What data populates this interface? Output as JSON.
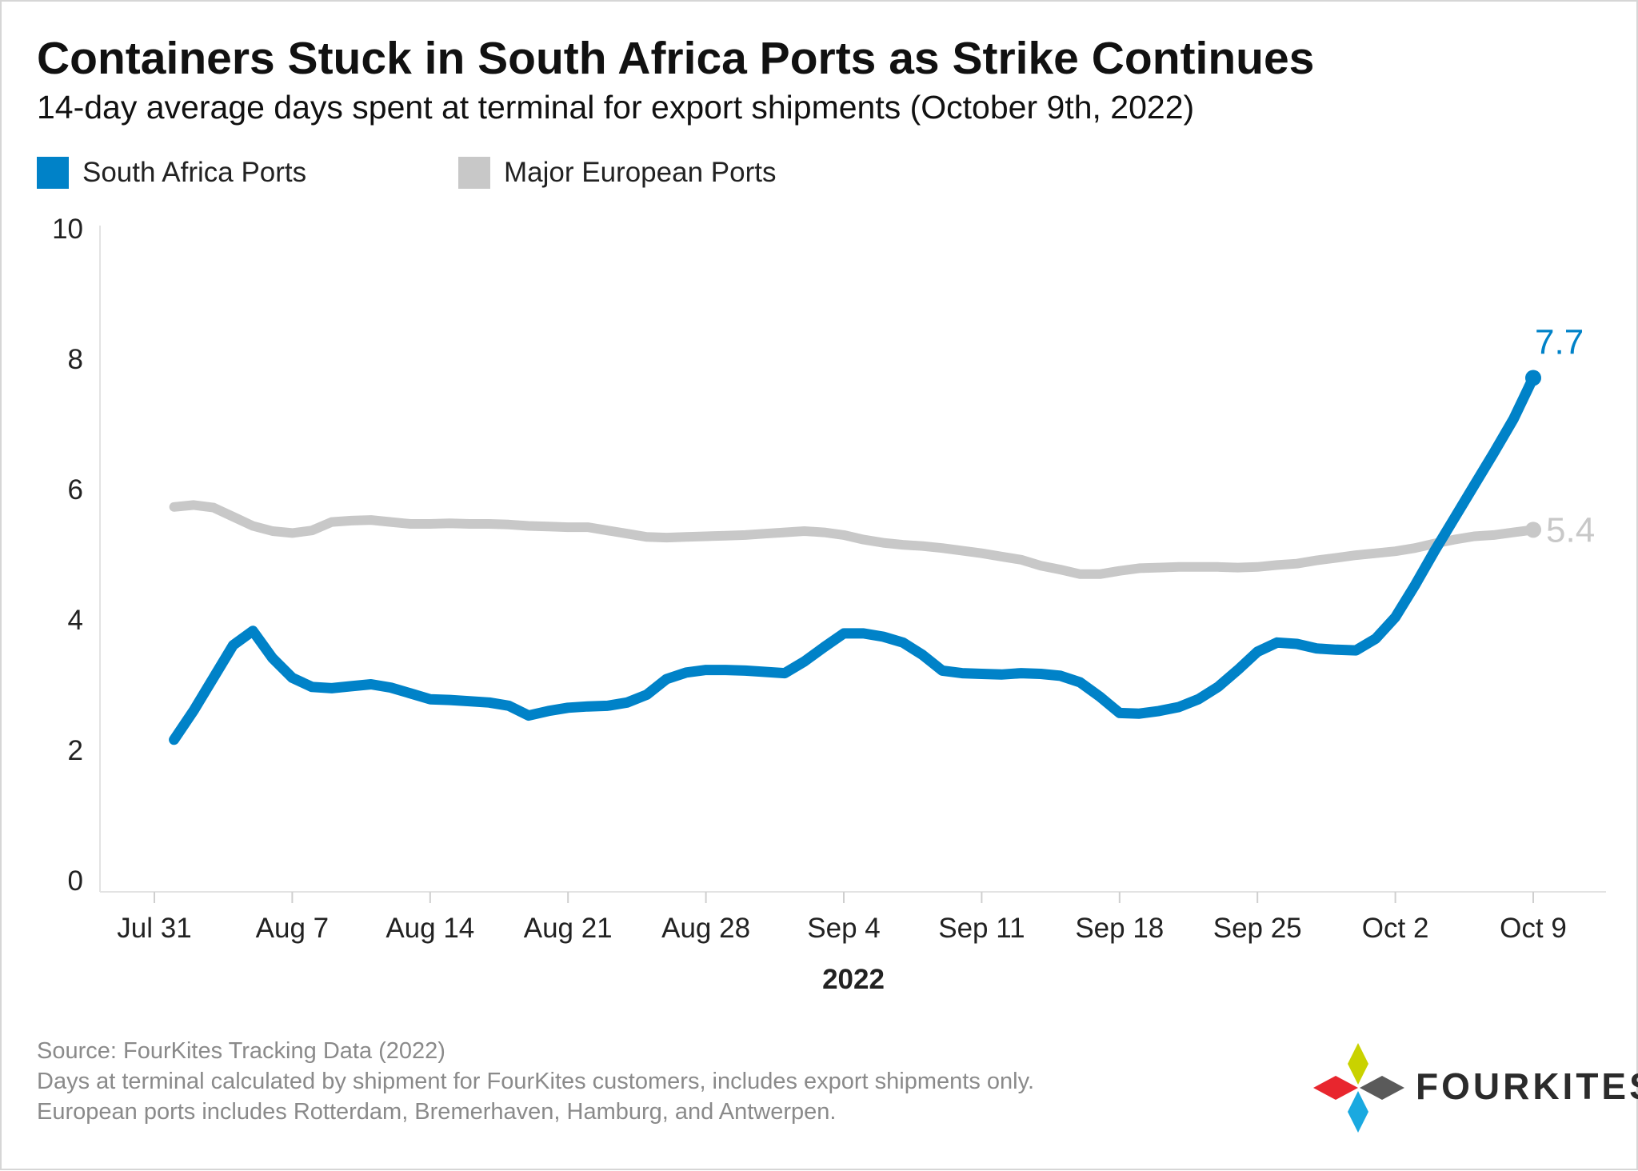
{
  "title": "Containers Stuck in South Africa Ports as Strike Continues",
  "subtitle": "14-day average days spent at terminal for export shipments (October 9th, 2022)",
  "legend": [
    {
      "label": "South Africa Ports",
      "color": "#0082c8"
    },
    {
      "label": "Major European Ports",
      "color": "#c8c8c8"
    }
  ],
  "footnotes": [
    "Source: FourKites Tracking Data (2022)",
    "Days at terminal calculated by shipment for FourKites customers, includes export shipments only.",
    "European ports includes Rotterdam, Bremerhaven, Hamburg, and Antwerpen."
  ],
  "brand": {
    "name": "FOURKITES",
    "logo_colors": [
      "#e8262e",
      "#c9d200",
      "#5a5a5a",
      "#1aa9e0"
    ]
  },
  "chart_data": {
    "type": "line",
    "xlabel": "2022",
    "ylabel": "",
    "ylim": [
      0,
      10
    ],
    "yticks": [
      "0",
      "2",
      "4",
      "6",
      "8",
      "10"
    ],
    "xticks": [
      {
        "day": 0,
        "label": "Jul 31"
      },
      {
        "day": 7,
        "label": "Aug 7"
      },
      {
        "day": 14,
        "label": "Aug 14"
      },
      {
        "day": 21,
        "label": "Aug 21"
      },
      {
        "day": 28,
        "label": "Aug 28"
      },
      {
        "day": 35,
        "label": "Sep 4"
      },
      {
        "day": 42,
        "label": "Sep 11"
      },
      {
        "day": 49,
        "label": "Sep 18"
      },
      {
        "day": 56,
        "label": "Sep 25"
      },
      {
        "day": 63,
        "label": "Oct 2"
      },
      {
        "day": 70,
        "label": "Oct 9"
      }
    ],
    "x": [
      1,
      2,
      3,
      4,
      5,
      6,
      7,
      8,
      9,
      10,
      11,
      12,
      13,
      14,
      15,
      16,
      17,
      18,
      19,
      20,
      21,
      22,
      23,
      24,
      25,
      26,
      27,
      28,
      29,
      30,
      31,
      32,
      33,
      34,
      35,
      36,
      37,
      38,
      39,
      40,
      41,
      42,
      43,
      44,
      45,
      46,
      47,
      48,
      49,
      50,
      51,
      52,
      53,
      54,
      55,
      56,
      57,
      58,
      59,
      60,
      61,
      62,
      63,
      64,
      65,
      66,
      67,
      68,
      69,
      70
    ],
    "series": [
      {
        "name": "South Africa Ports",
        "color": "#0082c8",
        "end_label": "7.7",
        "values": [
          2.15,
          2.6,
          3.1,
          3.6,
          3.82,
          3.4,
          3.1,
          2.96,
          2.94,
          2.97,
          3.0,
          2.95,
          2.86,
          2.77,
          2.76,
          2.74,
          2.72,
          2.67,
          2.52,
          2.59,
          2.64,
          2.66,
          2.67,
          2.72,
          2.84,
          3.08,
          3.18,
          3.22,
          3.22,
          3.21,
          3.19,
          3.17,
          3.35,
          3.57,
          3.78,
          3.78,
          3.73,
          3.64,
          3.45,
          3.21,
          3.17,
          3.16,
          3.15,
          3.17,
          3.16,
          3.13,
          3.03,
          2.81,
          2.56,
          2.55,
          2.59,
          2.65,
          2.77,
          2.96,
          3.22,
          3.5,
          3.64,
          3.62,
          3.55,
          3.53,
          3.52,
          3.7,
          4.03,
          4.52,
          5.05,
          5.55,
          6.05,
          6.55,
          7.07,
          7.7
        ]
      },
      {
        "name": "Major European Ports",
        "color": "#c8c8c8",
        "end_label": "5.4",
        "values": [
          5.72,
          5.75,
          5.71,
          5.57,
          5.43,
          5.35,
          5.32,
          5.36,
          5.49,
          5.51,
          5.52,
          5.49,
          5.46,
          5.46,
          5.47,
          5.46,
          5.46,
          5.45,
          5.43,
          5.42,
          5.41,
          5.41,
          5.36,
          5.31,
          5.26,
          5.25,
          5.26,
          5.27,
          5.28,
          5.29,
          5.31,
          5.33,
          5.35,
          5.33,
          5.29,
          5.22,
          5.17,
          5.14,
          5.12,
          5.09,
          5.05,
          5.01,
          4.96,
          4.91,
          4.82,
          4.76,
          4.69,
          4.69,
          4.74,
          4.78,
          4.79,
          4.8,
          4.8,
          4.8,
          4.79,
          4.8,
          4.83,
          4.85,
          4.9,
          4.94,
          4.98,
          5.01,
          5.04,
          5.09,
          5.16,
          5.22,
          5.27,
          5.29,
          5.33,
          5.37
        ]
      }
    ]
  }
}
